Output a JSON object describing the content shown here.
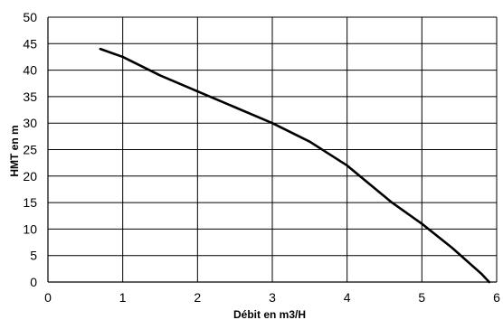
{
  "chart_data": {
    "type": "line",
    "title": "",
    "xlabel": "Débit en m3/H",
    "ylabel": "HMT en m",
    "xlim": [
      0,
      6
    ],
    "ylim": [
      0,
      50
    ],
    "x_ticks": [
      "0",
      "1",
      "2",
      "3",
      "4",
      "5",
      "6"
    ],
    "y_ticks": [
      "0",
      "5",
      "10",
      "15",
      "20",
      "25",
      "30",
      "35",
      "40",
      "45",
      "50"
    ],
    "grid": true,
    "legend": "none",
    "line_color": "#000000",
    "grid_color": "#000000",
    "series": [
      {
        "x": [
          0.7,
          1.0,
          1.5,
          2.0,
          2.5,
          3.0,
          3.5,
          4.0,
          4.3,
          4.6,
          5.0,
          5.4,
          5.8,
          5.9
        ],
        "y": [
          44,
          42.5,
          39,
          36,
          33,
          30,
          26.5,
          22,
          18.5,
          15,
          11,
          6.5,
          1.5,
          0
        ]
      }
    ]
  }
}
